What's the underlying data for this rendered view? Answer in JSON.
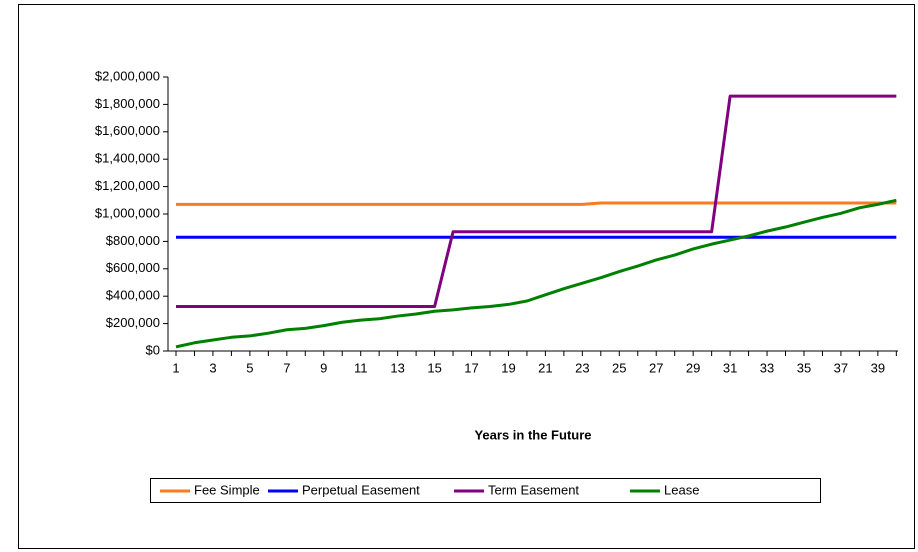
{
  "chart_data": {
    "type": "line",
    "xlabel": "Years in the Future",
    "categories": [
      "1",
      null,
      "3",
      null,
      "5",
      null,
      "7",
      null,
      "9",
      null,
      "11",
      null,
      "13",
      null,
      "15",
      null,
      "17",
      null,
      "19",
      null,
      "21",
      null,
      "23",
      null,
      "25",
      null,
      "27",
      null,
      "29",
      null,
      "31",
      null,
      "33",
      null,
      "35",
      null,
      "37",
      null,
      "39",
      null
    ],
    "series": [
      {
        "name": "Fee Simple",
        "color": "#f97b1d",
        "values": [
          1070000,
          1070000,
          1070000,
          1070000,
          1070000,
          1070000,
          1070000,
          1070000,
          1070000,
          1070000,
          1070000,
          1070000,
          1070000,
          1070000,
          1070000,
          1070000,
          1070000,
          1070000,
          1070000,
          1070000,
          1070000,
          1070000,
          1070000,
          1080000,
          1080000,
          1080000,
          1080000,
          1080000,
          1080000,
          1080000,
          1080000,
          1080000,
          1080000,
          1080000,
          1080000,
          1080000,
          1080000,
          1080000,
          1080000,
          1080000
        ]
      },
      {
        "name": "Perpetual Easement",
        "color": "#0000ff",
        "values": [
          830000,
          830000,
          830000,
          830000,
          830000,
          830000,
          830000,
          830000,
          830000,
          830000,
          830000,
          830000,
          830000,
          830000,
          830000,
          830000,
          830000,
          830000,
          830000,
          830000,
          830000,
          830000,
          830000,
          830000,
          830000,
          830000,
          830000,
          830000,
          830000,
          830000,
          830000,
          830000,
          830000,
          830000,
          830000,
          830000,
          830000,
          830000,
          830000,
          830000
        ]
      },
      {
        "name": "Term Easement",
        "color": "#800080",
        "values": [
          325000,
          325000,
          325000,
          325000,
          325000,
          325000,
          325000,
          325000,
          325000,
          325000,
          325000,
          325000,
          325000,
          325000,
          325000,
          870000,
          870000,
          870000,
          870000,
          870000,
          870000,
          870000,
          870000,
          870000,
          870000,
          870000,
          870000,
          870000,
          870000,
          870000,
          1860000,
          1860000,
          1860000,
          1860000,
          1860000,
          1860000,
          1860000,
          1860000,
          1860000,
          1860000
        ]
      },
      {
        "name": "Lease",
        "color": "#008000",
        "values": [
          30000,
          60000,
          80000,
          100000,
          110000,
          130000,
          155000,
          165000,
          185000,
          210000,
          225000,
          235000,
          255000,
          270000,
          290000,
          300000,
          315000,
          325000,
          340000,
          365000,
          410000,
          455000,
          495000,
          535000,
          580000,
          620000,
          665000,
          700000,
          745000,
          780000,
          810000,
          840000,
          875000,
          905000,
          940000,
          975000,
          1005000,
          1045000,
          1070000,
          1100000
        ]
      }
    ],
    "ylim": [
      0,
      2000000
    ],
    "yticks": [
      {
        "value": 0,
        "label": "$0"
      },
      {
        "value": 200000,
        "label": "$200,000"
      },
      {
        "value": 400000,
        "label": "$400,000"
      },
      {
        "value": 600000,
        "label": "$600,000"
      },
      {
        "value": 800000,
        "label": "$800,000"
      },
      {
        "value": 1000000,
        "label": "$1,000,000"
      },
      {
        "value": 1200000,
        "label": "$1,200,000"
      },
      {
        "value": 1400000,
        "label": "$1,400,000"
      },
      {
        "value": 1600000,
        "label": "$1,600,000"
      },
      {
        "value": 1800000,
        "label": "$1,800,000"
      },
      {
        "value": 2000000,
        "label": "$2,000,000"
      }
    ],
    "grid": false,
    "legend": "bottom"
  }
}
